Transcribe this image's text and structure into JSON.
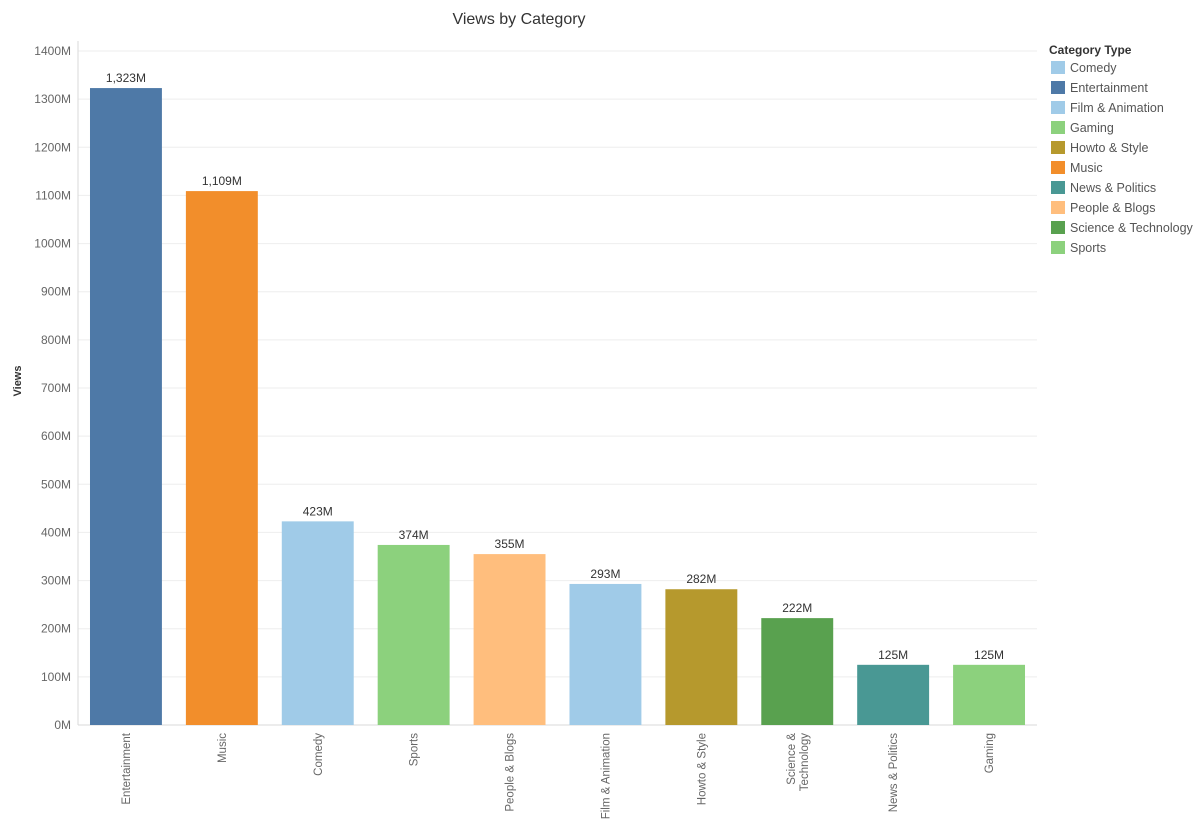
{
  "chart_data": {
    "type": "bar",
    "title": "Views by Category",
    "ylabel": "Views",
    "xlabel": "",
    "ylim": [
      0,
      1400
    ],
    "yticks": [
      0,
      100,
      200,
      300,
      400,
      500,
      600,
      700,
      800,
      900,
      1000,
      1100,
      1200,
      1300,
      1400
    ],
    "ytick_labels": [
      "0M",
      "100M",
      "200M",
      "300M",
      "400M",
      "500M",
      "600M",
      "700M",
      "800M",
      "900M",
      "1000M",
      "1100M",
      "1200M",
      "1300M",
      "1400M"
    ],
    "grid": true,
    "categories": [
      "Entertainment",
      "Music",
      "Comedy",
      "Sports",
      "People & Blogs",
      "Film & Animation",
      "Howto & Style",
      "Science & Technology",
      "News & Politics",
      "Gaming"
    ],
    "category_label_lines": [
      [
        "Entertainment"
      ],
      [
        "Music"
      ],
      [
        "Comedy"
      ],
      [
        "Sports"
      ],
      [
        "People & Blogs"
      ],
      [
        "Film & Animation"
      ],
      [
        "Howto & Style"
      ],
      [
        "Science &",
        "Technology"
      ],
      [
        "News & Politics"
      ],
      [
        "Gaming"
      ]
    ],
    "values": [
      1323,
      1109,
      423,
      374,
      355,
      293,
      282,
      222,
      125,
      125
    ],
    "data_labels": [
      "1,323M",
      "1,109M",
      "423M",
      "374M",
      "355M",
      "293M",
      "282M",
      "222M",
      "125M",
      "125M"
    ],
    "bar_colors": [
      "#4e79a7",
      "#f28e2b",
      "#a0cbe8",
      "#8cd17d",
      "#ffbe7d",
      "#a0cbe8",
      "#b6992d",
      "#59a14f",
      "#499894",
      "#8cd17d"
    ],
    "legend": {
      "title": "Category Type",
      "placement": "right",
      "items": [
        {
          "label": "Comedy",
          "color": "#a0cbe8"
        },
        {
          "label": "Entertainment",
          "color": "#4e79a7"
        },
        {
          "label": "Film & Animation",
          "color": "#a0cbe8"
        },
        {
          "label": "Gaming",
          "color": "#8cd17d"
        },
        {
          "label": "Howto & Style",
          "color": "#b6992d"
        },
        {
          "label": "Music",
          "color": "#f28e2b"
        },
        {
          "label": "News & Politics",
          "color": "#499894"
        },
        {
          "label": "People & Blogs",
          "color": "#ffbe7d"
        },
        {
          "label": "Science & Technology",
          "color": "#59a14f"
        },
        {
          "label": "Sports",
          "color": "#8cd17d"
        }
      ]
    }
  }
}
